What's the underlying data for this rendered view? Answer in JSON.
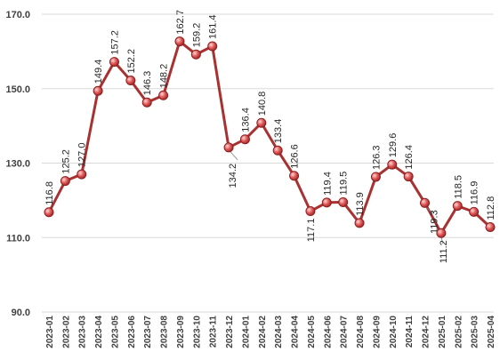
{
  "chart_data": {
    "type": "line",
    "title": "",
    "xlabel": "",
    "ylabel": "",
    "ylim": [
      90,
      170
    ],
    "yticks": [
      "90.0",
      "110.0",
      "130.0",
      "150.0",
      "170.0"
    ],
    "grid": true,
    "legend": "none",
    "colors": {
      "line": "#a83232",
      "marker": "#e05a5a",
      "marker_edge": "#8b2020",
      "grid": "#d9d9d9"
    },
    "categories": [
      "2023-01",
      "2023-02",
      "2023-03",
      "2023-04",
      "2023-05",
      "2023-06",
      "2023-07",
      "2023-08",
      "2023-09",
      "2023-10",
      "2023-11",
      "2023-12",
      "2024-01",
      "2024-02",
      "2024-03",
      "2024-04",
      "2024-05",
      "2024-06",
      "2024-07",
      "2024-08",
      "2024-09",
      "2024-10",
      "2024-11",
      "2024-12",
      "2025-01",
      "2025-02",
      "2025-03",
      "2025-04"
    ],
    "series": [
      {
        "values": [
          116.8,
          125.2,
          127.0,
          149.4,
          157.2,
          152.2,
          146.3,
          148.2,
          162.7,
          159.2,
          161.4,
          134.2,
          136.4,
          140.8,
          133.4,
          126.6,
          117.1,
          119.4,
          119.5,
          113.9,
          126.3,
          129.6,
          126.4,
          119.3,
          111.2,
          118.5,
          116.9,
          112.8
        ],
        "labels": [
          "116.8",
          "125.2",
          "127.0",
          "149.4",
          "157.2",
          "152.2",
          "146.3",
          "148.2",
          "162.7",
          "159.2",
          "161.4",
          "134.2",
          "136.4",
          "140.8",
          "133.4",
          "126.6",
          "117.1",
          "119.4",
          "119.5",
          "113.9",
          "126.3",
          "129.6",
          "126.4",
          "119.3",
          "111.2",
          "118.5",
          "116.9",
          "112.8"
        ]
      }
    ]
  }
}
